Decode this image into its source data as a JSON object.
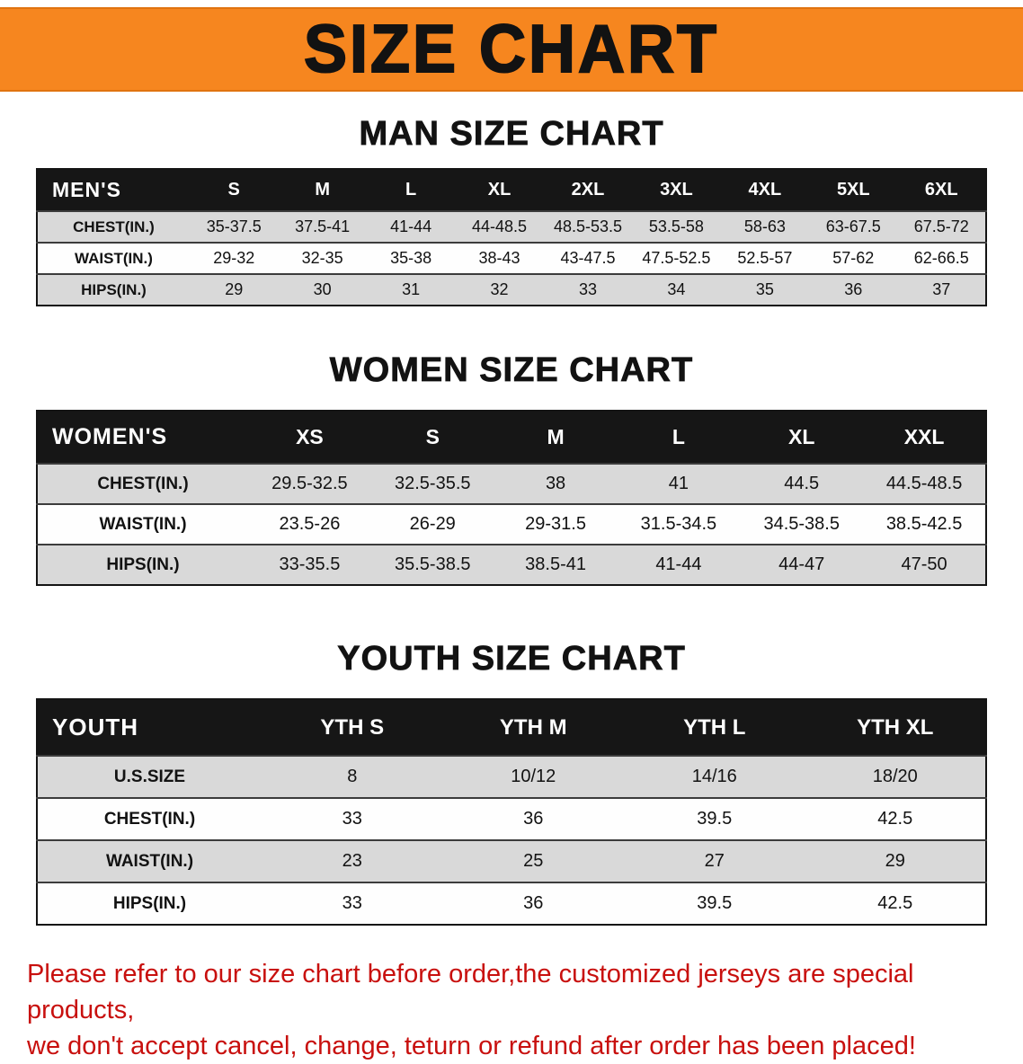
{
  "banner": {
    "title": "SIZE CHART"
  },
  "men_chart": {
    "heading": "MAN SIZE CHART",
    "table": {
      "header": [
        "MEN'S",
        "S",
        "M",
        "L",
        "XL",
        "2XL",
        "3XL",
        "4XL",
        "5XL",
        "6XL"
      ],
      "rows": [
        {
          "label": "CHEST(IN.)",
          "values": [
            "35-37.5",
            "37.5-41",
            "41-44",
            "44-48.5",
            "48.5-53.5",
            "53.5-58",
            "58-63",
            "63-67.5",
            "67.5-72"
          ]
        },
        {
          "label": "WAIST(IN.)",
          "values": [
            "29-32",
            "32-35",
            "35-38",
            "38-43",
            "43-47.5",
            "47.5-52.5",
            "52.5-57",
            "57-62",
            "62-66.5"
          ]
        },
        {
          "label": "HIPS(IN.)",
          "values": [
            "29",
            "30",
            "31",
            "32",
            "33",
            "34",
            "35",
            "36",
            "37"
          ]
        }
      ]
    }
  },
  "women_chart": {
    "heading": "WOMEN SIZE CHART",
    "table": {
      "header": [
        "WOMEN'S",
        "XS",
        "S",
        "M",
        "L",
        "XL",
        "XXL"
      ],
      "rows": [
        {
          "label": "CHEST(IN.)",
          "values": [
            "29.5-32.5",
            "32.5-35.5",
            "38",
            "41",
            "44.5",
            "44.5-48.5"
          ]
        },
        {
          "label": "WAIST(IN.)",
          "values": [
            "23.5-26",
            "26-29",
            "29-31.5",
            "31.5-34.5",
            "34.5-38.5",
            "38.5-42.5"
          ]
        },
        {
          "label": "HIPS(IN.)",
          "values": [
            "33-35.5",
            "35.5-38.5",
            "38.5-41",
            "41-44",
            "44-47",
            "47-50"
          ]
        }
      ]
    }
  },
  "youth_chart": {
    "heading": "YOUTH SIZE CHART",
    "table": {
      "header": [
        "YOUTH",
        "YTH S",
        "YTH M",
        "YTH L",
        "YTH XL"
      ],
      "rows": [
        {
          "label": "U.S.SIZE",
          "values": [
            "8",
            "10/12",
            "14/16",
            "18/20"
          ]
        },
        {
          "label": "CHEST(IN.)",
          "values": [
            "33",
            "36",
            "39.5",
            "42.5"
          ]
        },
        {
          "label": "WAIST(IN.)",
          "values": [
            "23",
            "25",
            "27",
            "29"
          ]
        },
        {
          "label": "HIPS(IN.)",
          "values": [
            "33",
            "36",
            "39.5",
            "42.5"
          ]
        }
      ]
    }
  },
  "footer": {
    "line1": "Please refer to our size chart before order,the customized jerseys are special products,",
    "line2": "we don't accept cancel, change, teturn or refund after order has been placed!"
  },
  "colors": {
    "banner_bg": "#F6861F",
    "table_header_bg": "#161616",
    "row_stripe": "#D9D9D9",
    "notice_red": "#C8100E"
  }
}
